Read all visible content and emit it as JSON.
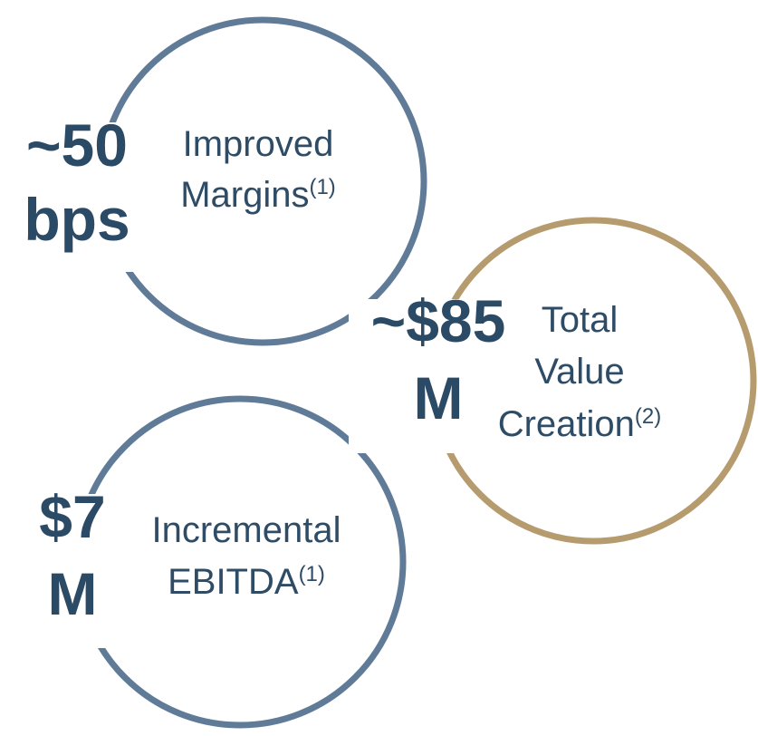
{
  "items": [
    {
      "value_lines": [
        "~50",
        "bps"
      ],
      "label_lines": [
        "Improved",
        "Margins"
      ],
      "note": "(1)",
      "color": "#607b97"
    },
    {
      "value_lines": [
        "~$85",
        "M"
      ],
      "label_lines": [
        "Total",
        "Value",
        "Creation"
      ],
      "note": "(2)",
      "color": "#b59b6d"
    },
    {
      "value_lines": [
        "$7",
        "M"
      ],
      "label_lines": [
        "Incremental",
        "EBITDA"
      ],
      "note": "(1)",
      "color": "#607b97"
    }
  ]
}
